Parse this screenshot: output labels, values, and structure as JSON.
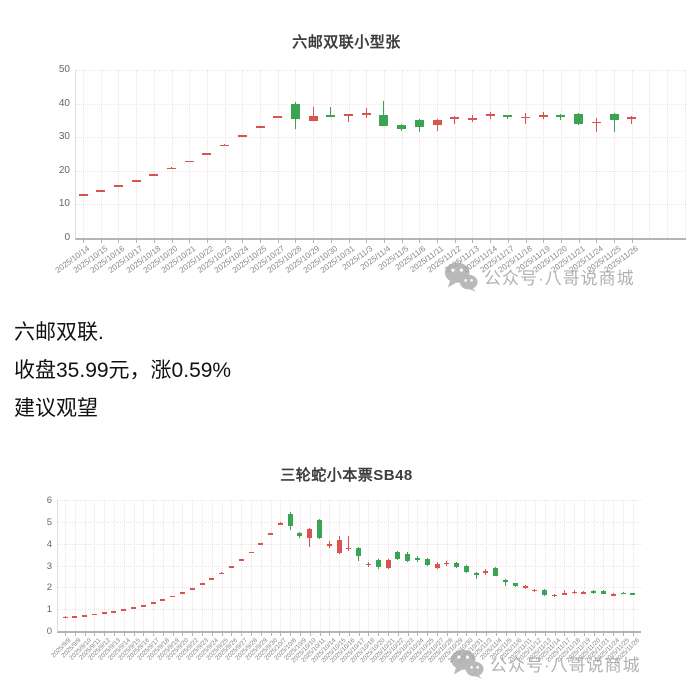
{
  "watermark": {
    "text": "公众号·八哥说商城"
  },
  "summary": {
    "line1": "六邮双联.",
    "line2": "收盘35.99元，涨0.59%",
    "line3": "建议观望"
  },
  "colors": {
    "up": "#d9534f",
    "down": "#3aa454",
    "grid_h": "#e7e7e7",
    "grid_v": "#f3dede",
    "axis": "#b3b3b3",
    "x_tick_label": "#888888",
    "y_tick_label": "#666666",
    "title": "#3d3d3d",
    "watermark": "#9e9e9e"
  },
  "chart_data": [
    {
      "type": "candlestick",
      "title": "六邮双联小型张",
      "xlabel": "",
      "ylabel": "",
      "ylim": [
        0,
        50
      ],
      "yticks": [
        0,
        10,
        20,
        30,
        40,
        50
      ],
      "grid": true,
      "legend": "none",
      "color_convention": "red=up, green=down",
      "dates": [
        "2025/10/14",
        "2025/10/15",
        "2025/10/16",
        "2025/10/17",
        "2025/10/18",
        "2025/10/20",
        "2025/10/21",
        "2025/10/22",
        "2025/10/23",
        "2025/10/24",
        "2025/10/25",
        "2025/10/27",
        "2025/10/28",
        "2025/10/29",
        "2025/10/30",
        "2025/10/31",
        "2025/11/3",
        "2025/11/4",
        "2025/11/5",
        "2025/11/6",
        "2025/11/11",
        "2025/11/12",
        "2025/11/13",
        "2025/11/14",
        "2025/11/17",
        "2025/11/18",
        "2025/11/19",
        "2025/11/20",
        "2025/11/21",
        "2025/11/24",
        "2025/11/25",
        "2025/11/26"
      ],
      "ohlc": [
        [
          12.9,
          13.05,
          12.75,
          12.95
        ],
        [
          14.2,
          14.35,
          14.05,
          14.25
        ],
        [
          15.6,
          15.75,
          15.45,
          15.65
        ],
        [
          17.2,
          17.35,
          17.05,
          17.25
        ],
        [
          18.9,
          19.05,
          18.75,
          18.95
        ],
        [
          20.85,
          21.0,
          20.7,
          20.9
        ],
        [
          22.9,
          23.05,
          22.75,
          22.95
        ],
        [
          25.2,
          25.35,
          25.05,
          25.25
        ],
        [
          27.7,
          27.85,
          27.55,
          27.75
        ],
        [
          30.55,
          30.7,
          30.4,
          30.6
        ],
        [
          33.15,
          33.3,
          33.0,
          33.2
        ],
        [
          36.1,
          36.3,
          35.95,
          36.2
        ],
        [
          40.0,
          40.4,
          32.5,
          35.4
        ],
        [
          34.9,
          38.9,
          34.7,
          36.4
        ],
        [
          36.5,
          38.9,
          36.0,
          36.2
        ],
        [
          36.2,
          37.0,
          34.6,
          36.8
        ],
        [
          37.0,
          38.8,
          35.6,
          37.2
        ],
        [
          36.6,
          40.7,
          33.2,
          33.4
        ],
        [
          33.5,
          33.9,
          31.9,
          32.4
        ],
        [
          35.2,
          35.5,
          31.6,
          33.0
        ],
        [
          33.6,
          35.4,
          31.9,
          35.0
        ],
        [
          35.3,
          36.4,
          33.9,
          36.1
        ],
        [
          35.3,
          36.5,
          34.5,
          35.6
        ],
        [
          36.2,
          37.4,
          35.3,
          37.0
        ],
        [
          36.5,
          36.7,
          35.3,
          36.3
        ],
        [
          35.9,
          37.3,
          34.0,
          36.1
        ],
        [
          36.2,
          37.6,
          35.4,
          36.5
        ],
        [
          36.6,
          36.8,
          35.0,
          36.4
        ],
        [
          36.9,
          37.1,
          33.7,
          34.0
        ],
        [
          34.3,
          35.7,
          31.6,
          34.6
        ],
        [
          36.9,
          37.1,
          31.6,
          35.1
        ],
        [
          35.78,
          36.2,
          33.9,
          35.99
        ]
      ]
    },
    {
      "type": "candlestick",
      "title": "三轮蛇小本票SB48",
      "xlabel": "",
      "ylabel": "",
      "ylim": [
        0,
        6
      ],
      "yticks": [
        0,
        1,
        2,
        3,
        4,
        5,
        6
      ],
      "grid": true,
      "legend": "none",
      "color_convention": "red=up, green=down",
      "dates": [
        "2025/9/8",
        "2025/9/9",
        "2025/9/10",
        "2025/9/11",
        "2025/9/12",
        "2025/9/13",
        "2025/9/14",
        "2025/9/15",
        "2025/9/16",
        "2025/9/17",
        "2025/9/18",
        "2025/9/19",
        "2025/9/20",
        "2025/9/22",
        "2025/9/23",
        "2025/9/24",
        "2025/9/25",
        "2025/9/26",
        "2025/9/27",
        "2025/9/28",
        "2025/9/29",
        "2025/9/30",
        "2025/10/7",
        "2025/10/8",
        "2025/10/9",
        "2025/10/10",
        "2025/10/11",
        "2025/10/14",
        "2025/10/15",
        "2025/10/16",
        "2025/10/17",
        "2025/10/18",
        "2025/10/20",
        "2025/10/21",
        "2025/10/22",
        "2025/10/23",
        "2025/10/24",
        "2025/10/25",
        "2025/10/27",
        "2025/10/28",
        "2025/10/29",
        "2025/10/30",
        "2025/10/31",
        "2025/11/3",
        "2025/11/4",
        "2025/11/5",
        "2025/11/6",
        "2025/11/11",
        "2025/11/12",
        "2025/11/13",
        "2025/11/14",
        "2025/11/17",
        "2025/11/18",
        "2025/11/19",
        "2025/11/20",
        "2025/11/21",
        "2025/11/24",
        "2025/11/25",
        "2025/11/26"
      ],
      "ohlc": [
        [
          0.65,
          0.67,
          0.63,
          0.66
        ],
        [
          0.68,
          0.7,
          0.66,
          0.69
        ],
        [
          0.72,
          0.74,
          0.7,
          0.73
        ],
        [
          0.78,
          0.8,
          0.76,
          0.79
        ],
        [
          0.84,
          0.86,
          0.82,
          0.85
        ],
        [
          0.91,
          0.93,
          0.89,
          0.92
        ],
        [
          0.99,
          1.01,
          0.97,
          1.0
        ],
        [
          1.08,
          1.1,
          1.06,
          1.09
        ],
        [
          1.18,
          1.2,
          1.16,
          1.19
        ],
        [
          1.3,
          1.32,
          1.28,
          1.31
        ],
        [
          1.44,
          1.46,
          1.42,
          1.45
        ],
        [
          1.6,
          1.62,
          1.58,
          1.61
        ],
        [
          1.77,
          1.79,
          1.75,
          1.78
        ],
        [
          1.96,
          1.98,
          1.94,
          1.97
        ],
        [
          2.17,
          2.19,
          2.15,
          2.18
        ],
        [
          2.4,
          2.42,
          2.38,
          2.41
        ],
        [
          2.66,
          2.68,
          2.64,
          2.67
        ],
        [
          2.95,
          2.97,
          2.93,
          2.96
        ],
        [
          3.27,
          3.29,
          3.25,
          3.28
        ],
        [
          3.62,
          3.64,
          3.6,
          3.63
        ],
        [
          4.02,
          4.05,
          4.0,
          4.03
        ],
        [
          4.46,
          4.49,
          4.44,
          4.47
        ],
        [
          4.93,
          4.97,
          4.91,
          4.95
        ],
        [
          5.38,
          5.45,
          4.62,
          4.8
        ],
        [
          4.48,
          4.55,
          4.28,
          4.35
        ],
        [
          4.25,
          4.7,
          3.85,
          4.65
        ],
        [
          5.1,
          5.15,
          4.2,
          4.28
        ],
        [
          3.92,
          4.12,
          3.8,
          3.98
        ],
        [
          3.58,
          4.35,
          3.54,
          4.18
        ],
        [
          3.76,
          4.35,
          3.68,
          3.82
        ],
        [
          3.78,
          3.84,
          3.2,
          3.42
        ],
        [
          3.0,
          3.18,
          2.92,
          3.08
        ],
        [
          3.26,
          3.32,
          2.86,
          2.94
        ],
        [
          2.9,
          3.3,
          2.84,
          3.24
        ],
        [
          3.62,
          3.68,
          3.26,
          3.3
        ],
        [
          3.52,
          3.6,
          3.14,
          3.22
        ],
        [
          3.34,
          3.44,
          3.18,
          3.28
        ],
        [
          3.28,
          3.34,
          2.98,
          3.02
        ],
        [
          2.88,
          3.14,
          2.82,
          3.08
        ],
        [
          3.06,
          3.22,
          2.96,
          3.12
        ],
        [
          3.12,
          3.18,
          2.88,
          2.92
        ],
        [
          2.98,
          3.04,
          2.66,
          2.7
        ],
        [
          2.64,
          2.68,
          2.4,
          2.6
        ],
        [
          2.68,
          2.84,
          2.58,
          2.74
        ],
        [
          2.88,
          2.92,
          2.5,
          2.54
        ],
        [
          2.34,
          2.38,
          2.06,
          2.3
        ],
        [
          2.18,
          2.22,
          2.02,
          2.06
        ],
        [
          1.98,
          2.1,
          1.94,
          2.08
        ],
        [
          1.86,
          1.92,
          1.8,
          1.9
        ],
        [
          1.88,
          1.92,
          1.62,
          1.66
        ],
        [
          1.58,
          1.7,
          1.54,
          1.66
        ],
        [
          1.7,
          1.9,
          1.66,
          1.74
        ],
        [
          1.76,
          1.88,
          1.68,
          1.8
        ],
        [
          1.73,
          1.84,
          1.7,
          1.77
        ],
        [
          1.82,
          1.86,
          1.7,
          1.78
        ],
        [
          1.84,
          1.88,
          1.68,
          1.7
        ],
        [
          1.62,
          1.74,
          1.58,
          1.7
        ],
        [
          1.76,
          1.78,
          1.7,
          1.74
        ],
        [
          1.74,
          1.76,
          1.68,
          1.72
        ]
      ]
    }
  ]
}
